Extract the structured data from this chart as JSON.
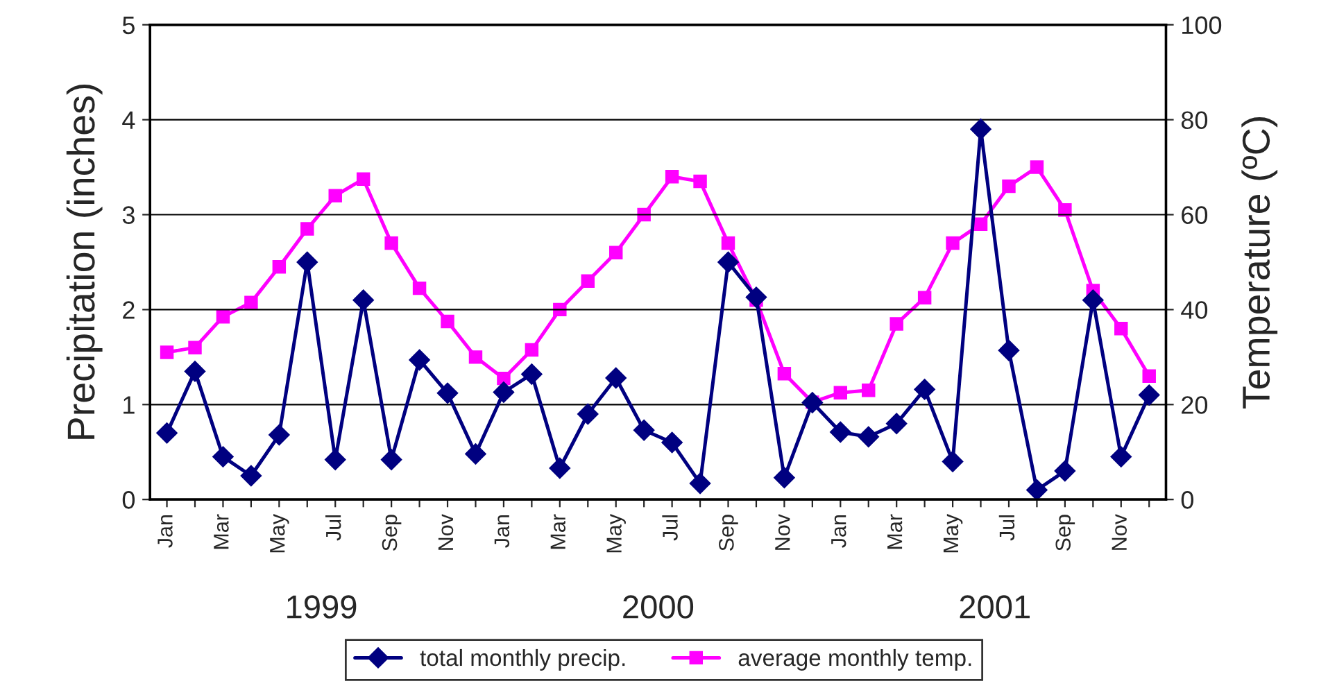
{
  "chart_data": {
    "type": "line",
    "ylabel": "Precipitation (inches)",
    "y2label": "Temperature (ºC)",
    "categories": [
      "Jan",
      null,
      "Mar",
      null,
      "May",
      null,
      "Jul",
      null,
      "Sep",
      null,
      "Nov",
      null,
      "Jan",
      null,
      "Mar",
      null,
      "May",
      null,
      "Jul",
      null,
      "Sep",
      null,
      "Nov",
      null,
      "Jan",
      null,
      "Mar",
      null,
      "May",
      null,
      "Jul",
      null,
      "Sep",
      null,
      "Nov",
      null
    ],
    "series": [
      {
        "name": "total monthly precip.",
        "color": "#000080",
        "marker": "diamond",
        "values": [
          0.7,
          1.35,
          0.45,
          0.25,
          0.68,
          2.5,
          0.42,
          2.1,
          0.42,
          1.47,
          1.12,
          0.48,
          1.13,
          1.32,
          0.33,
          0.9,
          1.28,
          0.73,
          0.6,
          0.17,
          2.5,
          2.13,
          0.23,
          1.02,
          0.71,
          0.66,
          0.8,
          1.16,
          0.4,
          3.9,
          1.57,
          0.1,
          0.3,
          2.1,
          0.45,
          1.1
        ]
      },
      {
        "name": "average monthly temp.",
        "color": "#ff00ff",
        "marker": "square",
        "axis": "y2",
        "values": [
          31,
          32,
          38.5,
          41.5,
          49,
          57,
          64,
          67.5,
          54,
          44.5,
          37.5,
          30,
          25.5,
          31.5,
          40,
          46,
          52,
          60,
          68,
          67,
          54,
          42,
          26.5,
          20.5,
          22.5,
          23,
          37,
          42.5,
          54,
          58,
          66,
          70,
          61,
          44,
          36,
          26
        ]
      }
    ],
    "ylim": [
      0,
      5
    ],
    "yticks": [
      0,
      1,
      2,
      3,
      4,
      5
    ],
    "y2lim": [
      0,
      100
    ],
    "y2ticks": [
      0,
      20,
      40,
      60,
      80,
      100
    ],
    "grid": "y",
    "legend": "bottom",
    "annotations": [
      "1999",
      "2000",
      "2001"
    ]
  }
}
